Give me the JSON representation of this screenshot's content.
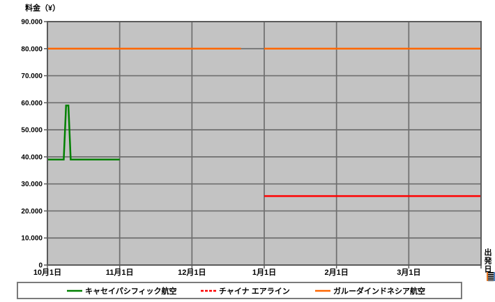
{
  "chart_data": {
    "type": "line",
    "title": "料金（¥）",
    "ylabel": "料金（¥）",
    "xlabel": "出発日",
    "ylim": [
      0,
      90000
    ],
    "grid": true,
    "plot_background": "#c3c3c3",
    "gridline_color": "#6e6e6e",
    "border_color": "#5a5a5a",
    "y_ticks": [
      {
        "value": 0,
        "label": "0"
      },
      {
        "value": 10000,
        "label": "10.000"
      },
      {
        "value": 20000,
        "label": "20.000"
      },
      {
        "value": 30000,
        "label": "30.000"
      },
      {
        "value": 40000,
        "label": "40.000"
      },
      {
        "value": 50000,
        "label": "50.000"
      },
      {
        "value": 60000,
        "label": "60.000"
      },
      {
        "value": 70000,
        "label": "70.000"
      },
      {
        "value": 80000,
        "label": "80.000"
      },
      {
        "value": 90000,
        "label": "90.000"
      }
    ],
    "x_ticks": [
      {
        "date": "10/1",
        "label": "10月1日"
      },
      {
        "date": "11/1",
        "label": "11月1日"
      },
      {
        "date": "12/1",
        "label": "12月1日"
      },
      {
        "date": "1/1",
        "label": "1月1日"
      },
      {
        "date": "2/1",
        "label": "2月1日"
      },
      {
        "date": "3/1",
        "label": "3月1日"
      }
    ],
    "x_range_end": "4/1",
    "series": [
      {
        "name": "キャセイパシフィック航空",
        "color": "#008000",
        "line_style": "solid",
        "segments": [
          [
            [
              "10/1",
              39000
            ],
            [
              "10/8",
              39000
            ],
            [
              "10/9",
              59000
            ],
            [
              "10/10",
              59000
            ],
            [
              "10/11",
              39000
            ],
            [
              "11/1",
              39000
            ]
          ]
        ]
      },
      {
        "name": "チャイナ エアライン",
        "color": "#ff0000",
        "line_style": "dashed",
        "segments": [
          [
            [
              "1/1",
              25500
            ],
            [
              "4/1",
              25500
            ]
          ]
        ]
      },
      {
        "name": "ガルーダインドネシア航空",
        "color": "#ff6600",
        "line_style": "solid",
        "segments": [
          [
            [
              "10/1",
              80000
            ],
            [
              "12/22",
              80000
            ]
          ],
          [
            [
              "1/1",
              80000
            ],
            [
              "4/1",
              80000
            ]
          ]
        ]
      }
    ],
    "legend": {
      "position": "bottom",
      "entries": [
        "キャセイパシフィック航空",
        "チャイナ エアライン",
        "ガルーダインドネシア航空"
      ]
    }
  },
  "icons": {
    "corner_widget": {
      "left_stripe": "#e87722",
      "right_stripe": "#4a7ebb",
      "body": "#111111"
    }
  }
}
